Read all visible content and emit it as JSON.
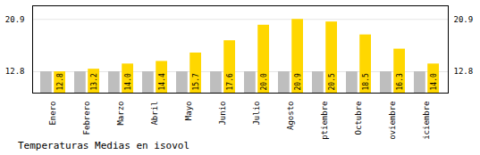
{
  "chart_data": {
    "type": "bar",
    "title": "Temperaturas Medias en isovol",
    "categories": [
      "Enero",
      "Febrero",
      "Marzo",
      "Abril",
      "Mayo",
      "Junio",
      "Julio",
      "Agosto",
      "Septiembre",
      "Octubre",
      "Noviembre",
      "Diciembre"
    ],
    "series": [
      {
        "color": "#BEBEBE",
        "values": [
          12.8,
          12.8,
          12.8,
          12.8,
          12.8,
          12.8,
          12.8,
          12.8,
          12.8,
          12.8,
          12.8,
          12.8
        ]
      },
      {
        "color": "#FFD700",
        "values": [
          12.8,
          13.2,
          14.0,
          14.4,
          15.7,
          17.6,
          20.0,
          20.9,
          20.5,
          18.5,
          16.3,
          14.0
        ],
        "value_labels": [
          "12.8",
          "13.2",
          "14.0",
          "14.4",
          "15.7",
          "17.6",
          "20.0",
          "20.9",
          "20.5",
          "18.5",
          "16.3",
          "14.0"
        ],
        "data_labels": true
      }
    ],
    "ylim": [
      9.5,
      23.0
    ],
    "yticks": [
      12.8,
      20.9
    ],
    "grid": true
  }
}
